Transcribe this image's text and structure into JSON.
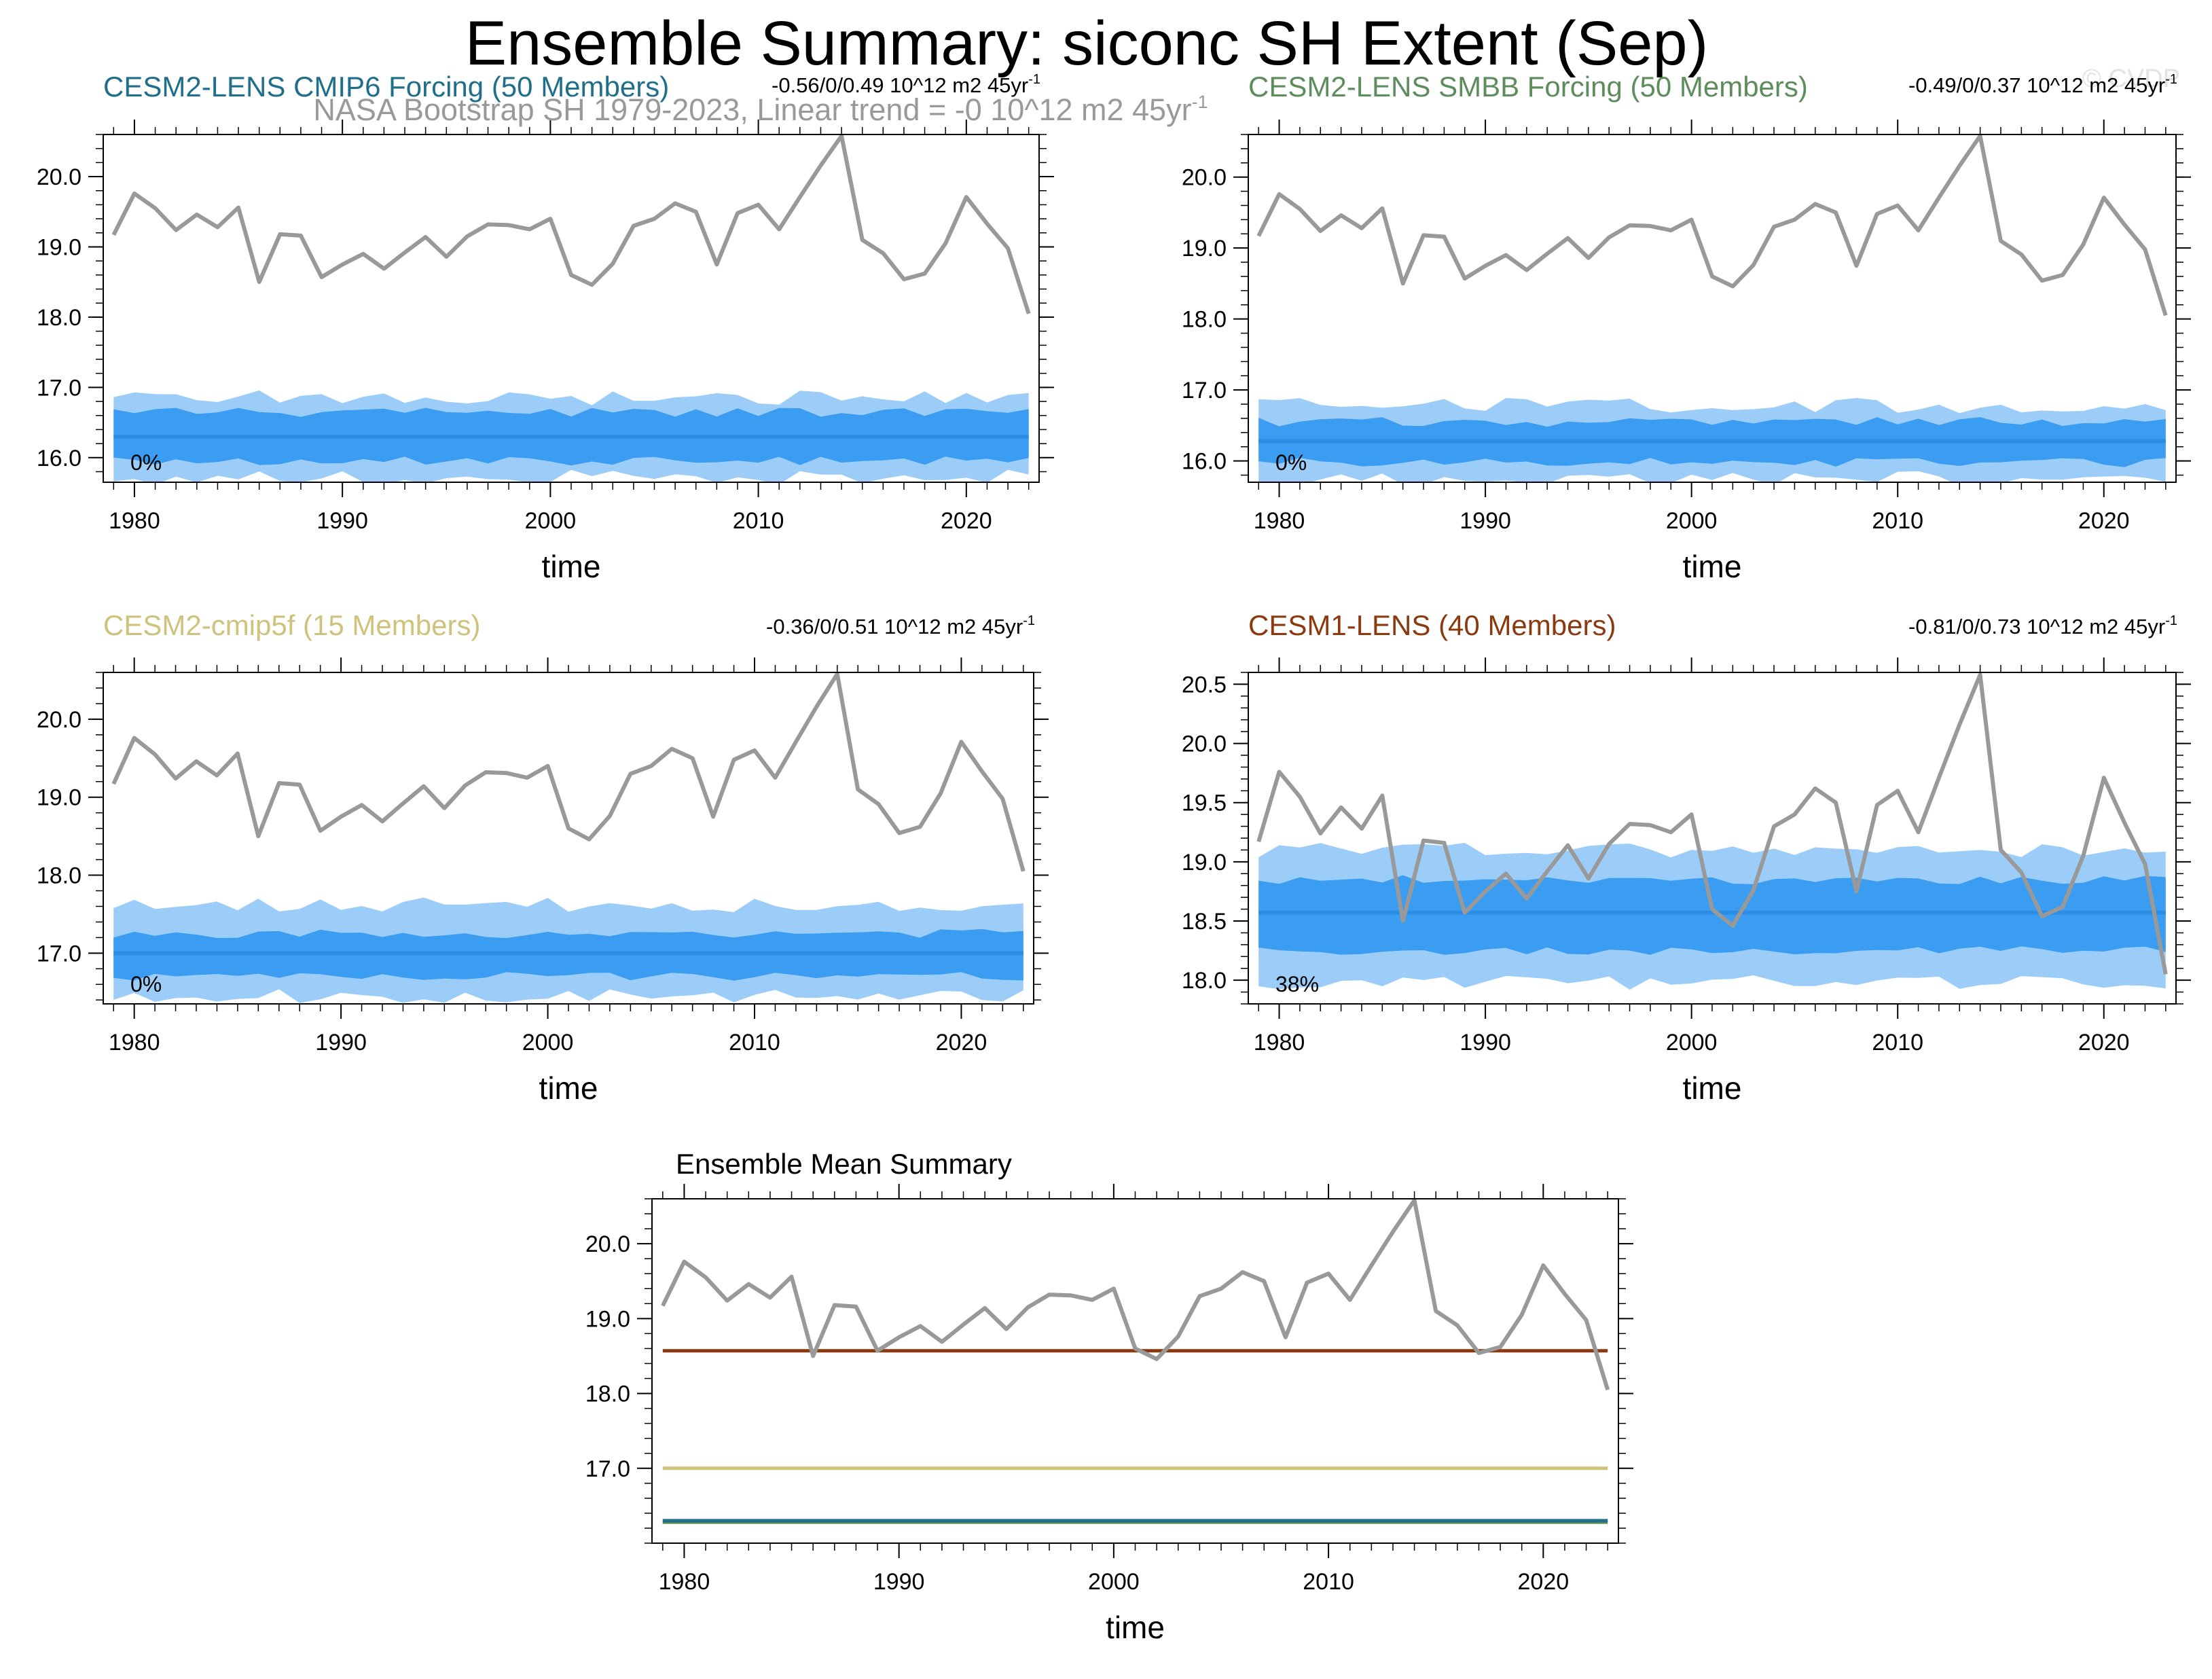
{
  "figure": {
    "title": "Ensemble Summary: siconc SH Extent (Sep)",
    "subtitle": "NASA Bootstrap SH 1979-2023, Linear trend = -0 10^12 m2 45yr",
    "subtitle_sup": "-1",
    "watermark": "© CVDP"
  },
  "chart_data": [
    {
      "type": "area",
      "title": "CESM2-LENS CMIP6 Forcing (50 Members)",
      "title_color": "#1f6f8b",
      "trend_label": "-0.56/0/0.49 10^12 m2 45yr",
      "trend_sup": "-1",
      "percent_label": "0%",
      "xlabel": "time",
      "xlim": [
        1978.5,
        2023.5
      ],
      "ylim": [
        15.65,
        20.6
      ],
      "yticks": [
        16.0,
        17.0,
        18.0,
        19.0,
        20.0
      ],
      "ytick_labels": [
        "16.0",
        "17.0",
        "18.0",
        "19.0",
        "20.0"
      ],
      "xticks": [
        1980,
        1990,
        2000,
        2010,
        2020
      ],
      "xtick_labels": [
        "1980",
        "1990",
        "2000",
        "2010",
        "2020"
      ],
      "ensemble_mean": 16.3,
      "inner_range": [
        15.95,
        16.65
      ],
      "outer_range": [
        15.72,
        16.85
      ],
      "noise_seed": 3,
      "observation_color": "#999999",
      "mean_color": "#2b8de6"
    },
    {
      "type": "area",
      "title": "CESM2-LENS SMBB Forcing (50 Members)",
      "title_color": "#5d8c5d",
      "trend_label": "-0.49/0/0.37 10^12 m2 45yr",
      "trend_sup": "-1",
      "percent_label": "0%",
      "xlabel": "time",
      "xlim": [
        1978.5,
        2023.5
      ],
      "ylim": [
        15.7,
        20.6
      ],
      "yticks": [
        16.0,
        17.0,
        18.0,
        19.0,
        20.0
      ],
      "ytick_labels": [
        "16.0",
        "17.0",
        "18.0",
        "19.0",
        "20.0"
      ],
      "xticks": [
        1980,
        1990,
        2000,
        2010,
        2020
      ],
      "xtick_labels": [
        "1980",
        "1990",
        "2000",
        "2010",
        "2020"
      ],
      "ensemble_mean": 16.28,
      "inner_range": [
        15.98,
        16.55
      ],
      "outer_range": [
        15.75,
        16.78
      ],
      "noise_seed": 7,
      "observation_color": "#999999",
      "mean_color": "#2b8de6"
    },
    {
      "type": "area",
      "title": "CESM2-cmip5f (15 Members)",
      "title_color": "#cfc27d",
      "trend_label": "-0.36/0/0.51 10^12 m2 45yr",
      "trend_sup": "-1",
      "percent_label": "0%",
      "xlabel": "time",
      "xlim": [
        1978.5,
        2023.5
      ],
      "ylim": [
        16.35,
        20.6
      ],
      "yticks": [
        17.0,
        18.0,
        19.0,
        20.0
      ],
      "ytick_labels": [
        "17.0",
        "18.0",
        "19.0",
        "20.0"
      ],
      "xticks": [
        1980,
        1990,
        2000,
        2010,
        2020
      ],
      "xtick_labels": [
        "1980",
        "1990",
        "2000",
        "2010",
        "2020"
      ],
      "ensemble_mean": 17.0,
      "inner_range": [
        16.7,
        17.25
      ],
      "outer_range": [
        16.45,
        17.62
      ],
      "noise_seed": 11,
      "observation_color": "#999999",
      "mean_color": "#2b8de6"
    },
    {
      "type": "area",
      "title": "CESM1-LENS (40 Members)",
      "title_color": "#8b3a0f",
      "trend_label": "-0.81/0/0.73 10^12 m2 45yr",
      "trend_sup": "-1",
      "percent_label": "38%",
      "xlabel": "time",
      "xlim": [
        1978.5,
        2023.5
      ],
      "ylim": [
        17.8,
        20.6
      ],
      "yticks": [
        18.0,
        18.5,
        19.0,
        19.5,
        20.0,
        20.5
      ],
      "ytick_labels": [
        "18.0",
        "18.5",
        "19.0",
        "19.5",
        "20.0",
        "20.5"
      ],
      "xticks": [
        1980,
        1990,
        2000,
        2010,
        2020
      ],
      "xtick_labels": [
        "1980",
        "1990",
        "2000",
        "2010",
        "2020"
      ],
      "ensemble_mean": 18.57,
      "inner_range": [
        18.25,
        18.85
      ],
      "outer_range": [
        17.98,
        19.1
      ],
      "noise_seed": 19,
      "observation_color": "#999999",
      "mean_color": "#2b8de6"
    },
    {
      "type": "line",
      "title": "Ensemble Mean Summary",
      "title_color": "#000000",
      "xlabel": "time",
      "xlim": [
        1978.5,
        2023.5
      ],
      "ylim": [
        16.0,
        20.6
      ],
      "yticks": [
        17.0,
        18.0,
        19.0,
        20.0
      ],
      "ytick_labels": [
        "17.0",
        "18.0",
        "19.0",
        "20.0"
      ],
      "xticks": [
        1980,
        1990,
        2000,
        2010,
        2020
      ],
      "xtick_labels": [
        "1980",
        "1990",
        "2000",
        "2010",
        "2020"
      ],
      "series": [
        {
          "name": "CESM1-LENS",
          "value": 18.57,
          "color": "#8b3a0f"
        },
        {
          "name": "CESM2-cmip5f",
          "value": 17.0,
          "color": "#cfc27d"
        },
        {
          "name": "CESM2-LENS SMBB Forcing",
          "value": 16.28,
          "color": "#5d8c5d"
        },
        {
          "name": "CESM2-LENS CMIP6 Forcing",
          "value": 16.3,
          "color": "#1f6f8b"
        }
      ],
      "observation_color": "#999999"
    }
  ],
  "observations": {
    "name": "NASA Bootstrap SH",
    "years": [
      1979,
      1980,
      1981,
      1982,
      1983,
      1984,
      1985,
      1986,
      1987,
      1988,
      1989,
      1990,
      1991,
      1992,
      1993,
      1994,
      1995,
      1996,
      1997,
      1998,
      1999,
      2000,
      2001,
      2002,
      2003,
      2004,
      2005,
      2006,
      2007,
      2008,
      2009,
      2010,
      2011,
      2012,
      2013,
      2014,
      2015,
      2016,
      2017,
      2018,
      2019,
      2020,
      2021,
      2022,
      2023
    ],
    "values": [
      19.17,
      19.76,
      19.55,
      19.24,
      19.46,
      19.28,
      19.56,
      18.5,
      19.18,
      19.16,
      18.57,
      18.75,
      18.9,
      18.69,
      18.92,
      19.14,
      18.86,
      19.15,
      19.32,
      19.31,
      19.25,
      19.4,
      18.6,
      18.46,
      18.76,
      19.3,
      19.4,
      19.62,
      19.5,
      18.75,
      19.48,
      19.6,
      19.25,
      19.71,
      20.16,
      20.58,
      19.1,
      18.91,
      18.54,
      18.62,
      19.05,
      19.71,
      19.33,
      18.98,
      18.05
    ]
  }
}
